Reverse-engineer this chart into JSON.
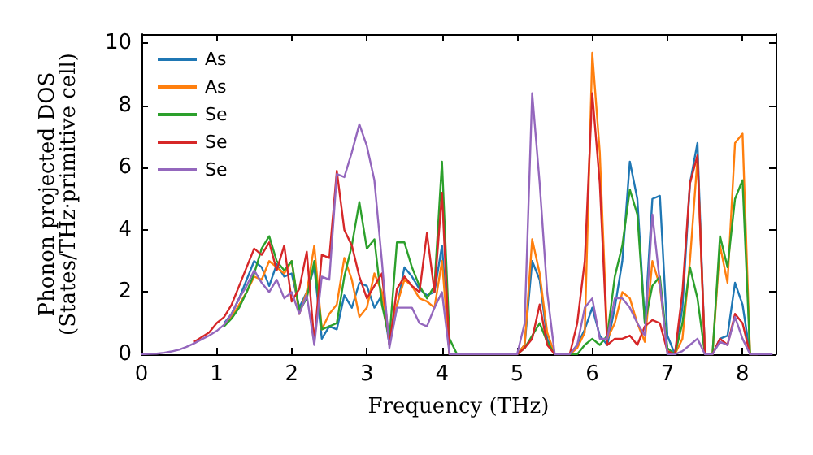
{
  "chart_data": {
    "type": "line",
    "xlabel": "Frequency (THz)",
    "ylabel": "Phonon projected DOS\n(States/THz·primitive cell)",
    "xlim": [
      0,
      8.44
    ],
    "ylim": [
      0,
      10.3
    ],
    "xticks": [
      0,
      1,
      2,
      3,
      4,
      5,
      6,
      7,
      8
    ],
    "yticks": [
      0,
      2,
      4,
      6,
      8,
      10
    ],
    "grid": false,
    "legend": "top left",
    "marker": "none",
    "line_style": "solid",
    "x": [
      0,
      0.1,
      0.2,
      0.3,
      0.4,
      0.5,
      0.6,
      0.7,
      0.8,
      0.9,
      1,
      1.1,
      1.2,
      1.3,
      1.4,
      1.5,
      1.6,
      1.7,
      1.8,
      1.9,
      2,
      2.1,
      2.2,
      2.3,
      2.4,
      2.5,
      2.6,
      2.7,
      2.8,
      2.9,
      3,
      3.1,
      3.2,
      3.3,
      3.4,
      3.5,
      3.6,
      3.7,
      3.8,
      3.9,
      4,
      4.1,
      4.2,
      4.3,
      4.4,
      4.5,
      4.6,
      4.7,
      4.8,
      4.9,
      5,
      5.1,
      5.2,
      5.3,
      5.4,
      5.5,
      5.6,
      5.7,
      5.8,
      5.9,
      6,
      6.1,
      6.2,
      6.3,
      6.4,
      6.5,
      6.6,
      6.7,
      6.8,
      6.9,
      7,
      7.1,
      7.2,
      7.3,
      7.4,
      7.5,
      7.6,
      7.7,
      7.8,
      7.9,
      8,
      8.1,
      8.2,
      8.3,
      8.4
    ],
    "series": [
      {
        "name": "As",
        "color": "#1f77b4",
        "values": [
          null,
          null,
          null,
          null,
          null,
          null,
          null,
          null,
          null,
          null,
          null,
          1.0,
          1.3,
          1.8,
          2.4,
          3.0,
          2.8,
          2.2,
          2.9,
          2.5,
          2.6,
          1.5,
          2.0,
          2.8,
          0.5,
          0.9,
          0.8,
          1.9,
          1.5,
          2.3,
          2.2,
          1.5,
          1.9,
          0.3,
          1.5,
          2.8,
          2.5,
          2.1,
          1.9,
          2.0,
          3.5,
          0,
          0,
          0,
          0,
          0,
          0,
          0,
          0,
          0,
          0,
          0.3,
          3.0,
          2.4,
          0.5,
          0,
          0,
          0,
          0.3,
          0.8,
          1.5,
          0.6,
          0.3,
          1.5,
          3.0,
          6.2,
          5.0,
          1.0,
          5.0,
          5.1,
          0.6,
          0,
          1.5,
          5.5,
          6.8,
          0,
          0,
          0.5,
          0.6,
          2.3,
          1.6,
          0,
          0,
          null,
          null
        ]
      },
      {
        "name": "As",
        "color": "#ff7f0e",
        "values": [
          null,
          null,
          null,
          null,
          null,
          null,
          null,
          null,
          null,
          null,
          null,
          0.95,
          1.2,
          1.6,
          2.0,
          2.5,
          2.4,
          3.0,
          2.8,
          2.6,
          3.0,
          1.3,
          2.0,
          3.5,
          0.8,
          1.3,
          1.6,
          3.1,
          2.4,
          1.2,
          1.5,
          2.6,
          2.0,
          0.4,
          1.6,
          2.4,
          2.2,
          1.8,
          1.7,
          1.5,
          3.0,
          0,
          0,
          0,
          0,
          0,
          0,
          0,
          0,
          0,
          0,
          0.3,
          3.7,
          2.6,
          0.7,
          0,
          0,
          0,
          0.2,
          0.7,
          9.7,
          6.5,
          0.5,
          1.0,
          2.0,
          1.8,
          1.0,
          0.4,
          3.0,
          2.2,
          0.1,
          0,
          0.5,
          3.0,
          6.3,
          0,
          0,
          3.5,
          2.3,
          6.8,
          7.1,
          0,
          0,
          null,
          null
        ]
      },
      {
        "name": "Se",
        "color": "#2ca02c",
        "values": [
          null,
          null,
          null,
          null,
          null,
          null,
          null,
          null,
          null,
          null,
          null,
          0.9,
          1.15,
          1.5,
          2.0,
          2.6,
          3.4,
          3.8,
          3.0,
          2.7,
          3.0,
          1.4,
          1.8,
          3.0,
          0.8,
          0.9,
          1.0,
          2.5,
          3.5,
          4.9,
          3.4,
          3.7,
          1.6,
          0.5,
          3.6,
          3.6,
          2.8,
          2.2,
          1.8,
          2.2,
          6.2,
          0.5,
          0,
          0,
          0,
          0,
          0,
          0,
          0,
          0,
          0,
          0.2,
          0.6,
          1.0,
          0.4,
          0,
          0,
          0,
          0,
          0.3,
          0.5,
          0.3,
          0.6,
          2.5,
          3.5,
          5.3,
          4.5,
          1.0,
          2.2,
          2.5,
          0.2,
          0,
          1.0,
          2.8,
          1.8,
          0,
          0,
          3.8,
          2.8,
          5.0,
          5.6,
          0,
          0,
          null,
          null
        ]
      },
      {
        "name": "Se",
        "color": "#d62728",
        "values": [
          null,
          null,
          null,
          null,
          null,
          null,
          null,
          0.4,
          0.55,
          0.7,
          1.0,
          1.2,
          1.6,
          2.2,
          2.8,
          3.4,
          3.2,
          3.6,
          2.7,
          3.5,
          1.7,
          2.1,
          3.3,
          0.4,
          3.2,
          3.1,
          5.9,
          4.0,
          3.5,
          2.5,
          1.8,
          2.2,
          2.6,
          0.3,
          2.1,
          2.5,
          2.2,
          2.0,
          3.9,
          2.0,
          5.2,
          0,
          0,
          0,
          0,
          0,
          0,
          0,
          0,
          0,
          0,
          0.2,
          0.5,
          1.6,
          0.3,
          0,
          0,
          0,
          1.0,
          3.0,
          8.4,
          5.5,
          0.3,
          0.5,
          0.5,
          0.6,
          0.3,
          0.9,
          1.1,
          1.0,
          0.1,
          0,
          2.0,
          5.5,
          6.4,
          0,
          0,
          0.5,
          0.3,
          1.3,
          1.0,
          0,
          0,
          null,
          null
        ]
      },
      {
        "name": "Se",
        "color": "#9467bd",
        "values": [
          0,
          0.01,
          0.02,
          0.05,
          0.09,
          0.15,
          0.24,
          0.35,
          0.48,
          0.6,
          0.75,
          0.95,
          1.3,
          1.8,
          2.2,
          2.7,
          2.3,
          2.0,
          2.4,
          1.8,
          2.0,
          1.3,
          1.9,
          0.3,
          2.5,
          2.4,
          5.8,
          5.7,
          6.5,
          7.4,
          6.7,
          5.6,
          3.0,
          0.2,
          1.5,
          1.5,
          1.5,
          1.0,
          0.9,
          1.5,
          2.0,
          0,
          0,
          0,
          0,
          0,
          0,
          0,
          0,
          0,
          0,
          1.0,
          8.4,
          5.5,
          2.0,
          0,
          0,
          0,
          0.3,
          1.5,
          1.8,
          0.5,
          0.5,
          1.8,
          1.8,
          1.5,
          1.0,
          0.6,
          4.5,
          2.3,
          0,
          0,
          0.1,
          0.3,
          0.5,
          0,
          0,
          0.4,
          0.3,
          1.2,
          0.5,
          0,
          0,
          0,
          0
        ]
      }
    ]
  }
}
